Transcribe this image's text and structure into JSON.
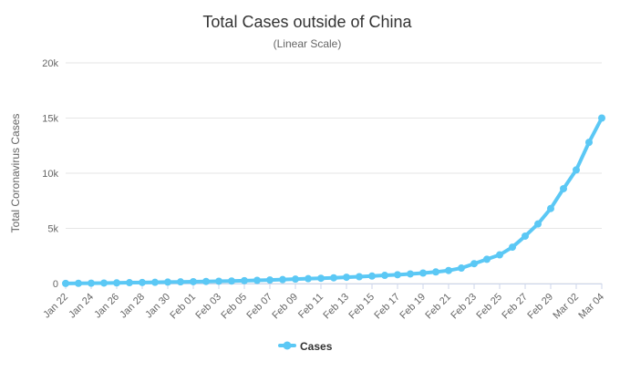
{
  "chart_data": {
    "type": "line",
    "title": "Total Cases outside of China",
    "subtitle": "(Linear Scale)",
    "ylabel": "Total Coronavirus Cases",
    "xlabel": "",
    "ylim": [
      0,
      20000
    ],
    "y_ticks": [
      0,
      5000,
      10000,
      15000,
      20000
    ],
    "y_tick_labels": [
      "0",
      "5k",
      "10k",
      "15k",
      "20k"
    ],
    "x": [
      "Jan 22",
      "Jan 23",
      "Jan 24",
      "Jan 25",
      "Jan 26",
      "Jan 27",
      "Jan 28",
      "Jan 29",
      "Jan 30",
      "Jan 31",
      "Feb 01",
      "Feb 02",
      "Feb 03",
      "Feb 04",
      "Feb 05",
      "Feb 06",
      "Feb 07",
      "Feb 08",
      "Feb 09",
      "Feb 10",
      "Feb 11",
      "Feb 12",
      "Feb 13",
      "Feb 14",
      "Feb 15",
      "Feb 16",
      "Feb 17",
      "Feb 18",
      "Feb 19",
      "Feb 20",
      "Feb 21",
      "Feb 22",
      "Feb 23",
      "Feb 24",
      "Feb 25",
      "Feb 26",
      "Feb 27",
      "Feb 28",
      "Feb 29",
      "Mar 01",
      "Mar 02",
      "Mar 03",
      "Mar 04"
    ],
    "x_tick_labels": [
      "Jan 22",
      "Jan 24",
      "Jan 26",
      "Jan 28",
      "Jan 30",
      "Feb 01",
      "Feb 03",
      "Feb 05",
      "Feb 07",
      "Feb 09",
      "Feb 11",
      "Feb 13",
      "Feb 15",
      "Feb 17",
      "Feb 19",
      "Feb 21",
      "Feb 23",
      "Feb 25",
      "Feb 27",
      "Feb 29",
      "Mar 02",
      "Mar 04"
    ],
    "series": [
      {
        "name": "Cases",
        "color": "#5bc8f5",
        "values": [
          10,
          20,
          30,
          45,
          60,
          80,
          95,
          110,
          130,
          150,
          170,
          190,
          210,
          230,
          260,
          290,
          320,
          360,
          400,
          440,
          480,
          520,
          570,
          620,
          680,
          740,
          800,
          870,
          950,
          1050,
          1180,
          1400,
          1800,
          2200,
          2600,
          3300,
          4300,
          5400,
          6800,
          8600,
          10300,
          12800,
          15000
        ]
      }
    ],
    "grid": true,
    "legend": "bottom-center"
  }
}
